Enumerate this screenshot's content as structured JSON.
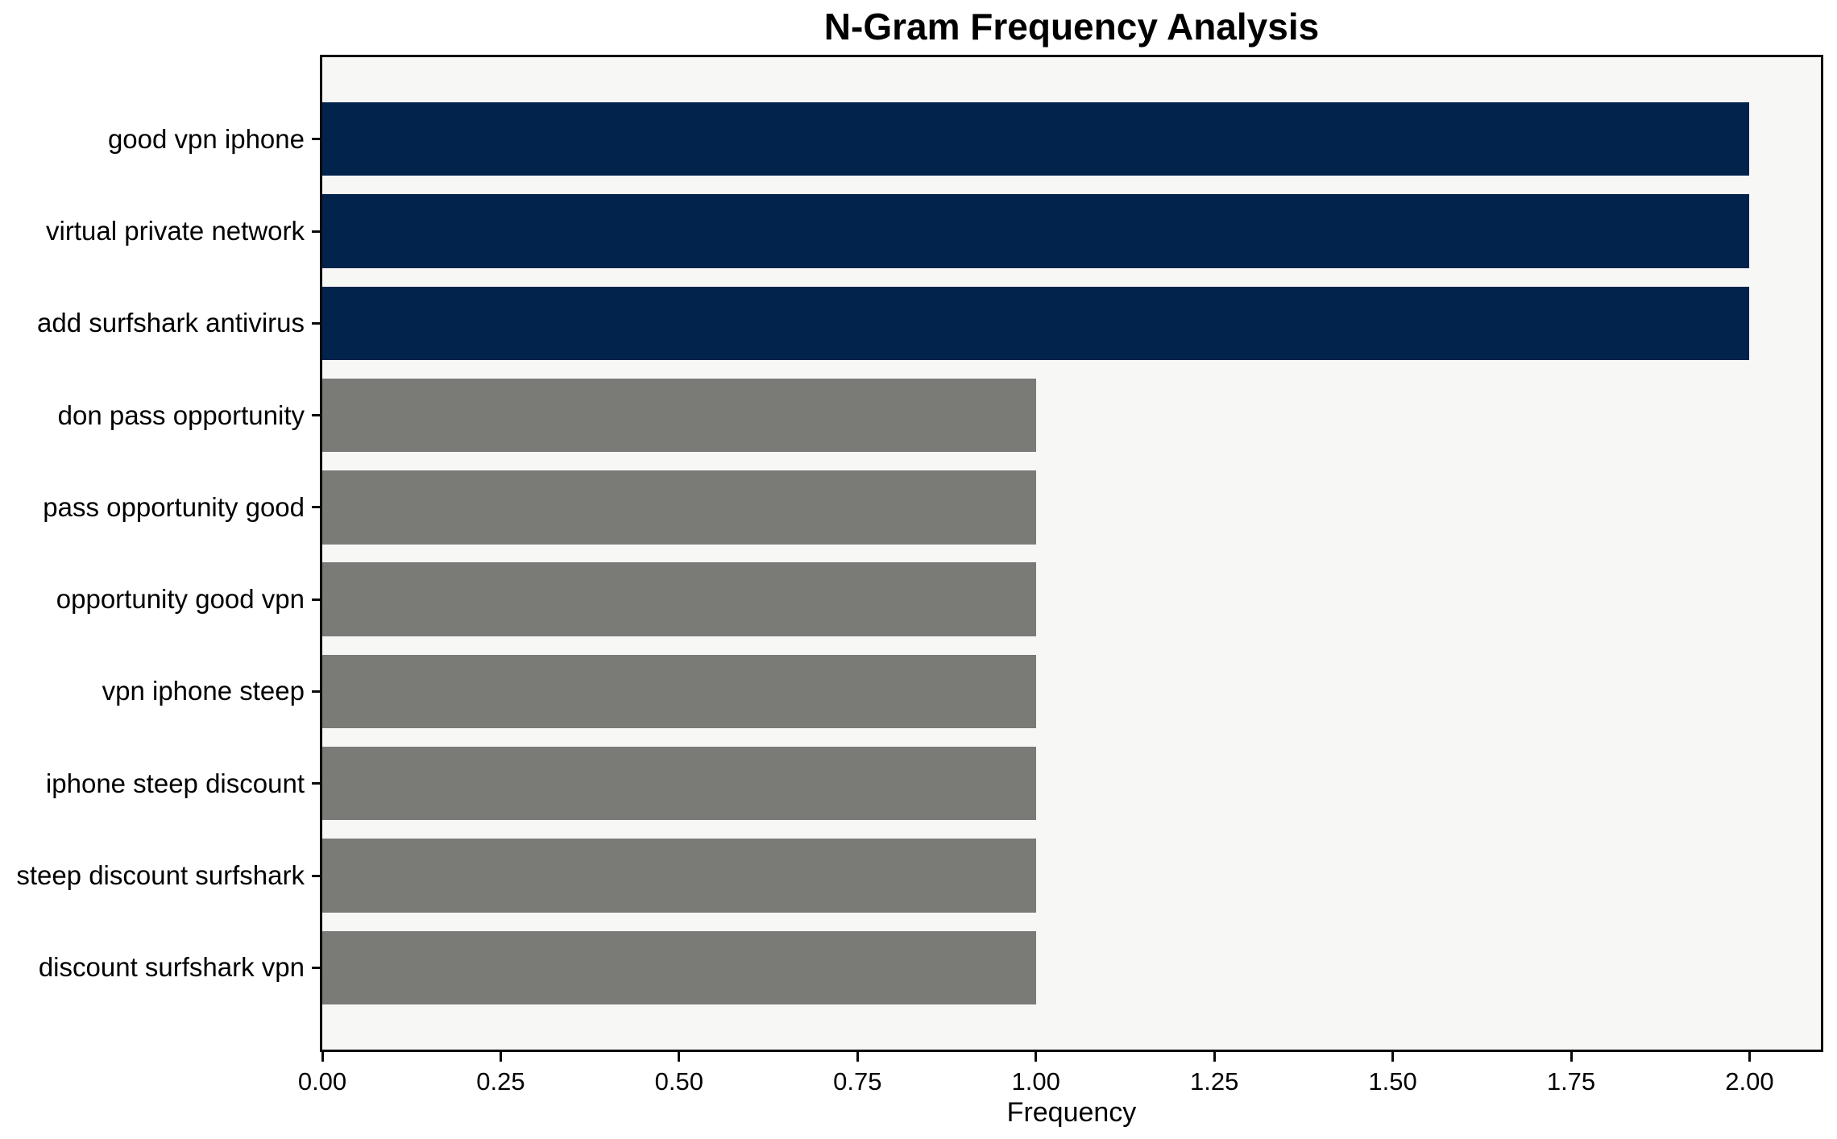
{
  "chart_data": {
    "type": "bar",
    "orientation": "horizontal",
    "title": "N-Gram Frequency Analysis",
    "xlabel": "Frequency",
    "ylabel": "",
    "categories": [
      "good vpn iphone",
      "virtual private network",
      "add surfshark antivirus",
      "don pass opportunity",
      "pass opportunity good",
      "opportunity good vpn",
      "vpn iphone steep",
      "iphone steep discount",
      "steep discount surfshark",
      "discount surfshark vpn"
    ],
    "values": [
      2,
      2,
      2,
      1,
      1,
      1,
      1,
      1,
      1,
      1
    ],
    "bar_colors": [
      "#02234c",
      "#02234c",
      "#02234c",
      "#7a7a77",
      "#7a7a77",
      "#7a7a77",
      "#7a7a77",
      "#7a7a77",
      "#7a7a77",
      "#7a7a77"
    ],
    "xlim": [
      0,
      2.1
    ],
    "xtick_values": [
      0,
      0.25,
      0.5,
      0.75,
      1.0,
      1.25,
      1.5,
      1.75,
      2.0
    ],
    "xtick_labels": [
      "0.00",
      "0.25",
      "0.50",
      "0.75",
      "1.00",
      "1.25",
      "1.50",
      "1.75",
      "2.00"
    ],
    "grid": false,
    "legend": "none",
    "colors": {
      "highlight_navy": "#02234c",
      "default_gray": "#7a7a77",
      "plot_background": "#f7f7f6",
      "figure_background": "#ffffff",
      "axis": "#0a0a0a"
    }
  }
}
